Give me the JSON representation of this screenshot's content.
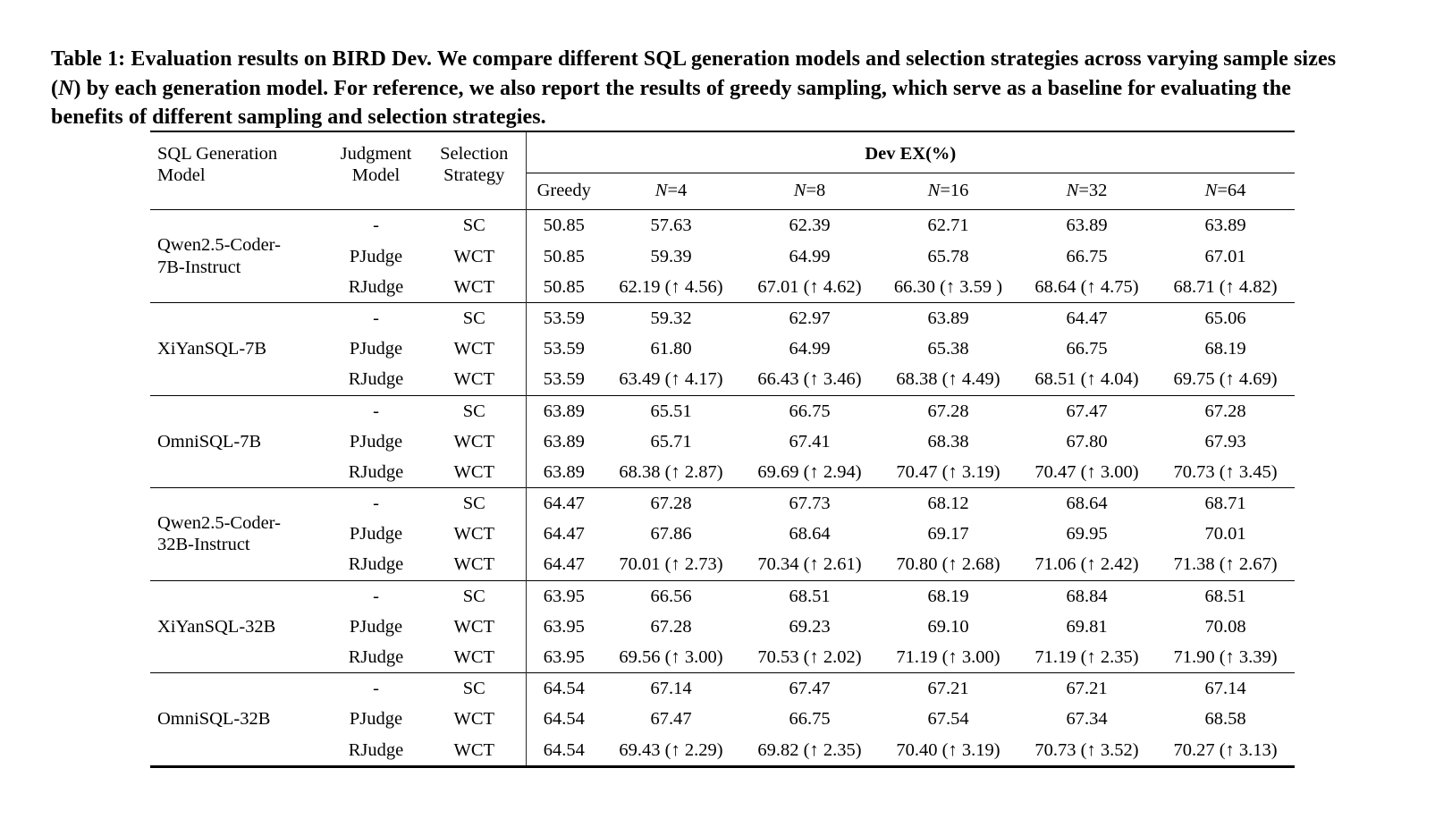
{
  "caption": {
    "part1": "Table 1: Evaluation results on BIRD Dev. We compare different SQL generation models and selection strategies across varying sample sizes (",
    "n_symbol": "N",
    "part2": ") by each generation model. For reference, we also report the results of greedy sampling, which serve as a baseline for evaluating the benefits of different sampling and selection strategies."
  },
  "table": {
    "headers": {
      "model": "SQL Generation Model",
      "judgment": "Judgment Model",
      "strategy": "Selection Strategy",
      "dev_ex": "Dev EX(%)"
    },
    "subheaders": {
      "greedy": "Greedy",
      "n_symbol": "N",
      "n_values": [
        "=4",
        "=8",
        "=16",
        "=32",
        "=64"
      ]
    },
    "groups": [
      {
        "model": "Qwen2.5-Coder-7B-Instruct",
        "model_lines": [
          "Qwen2.5-Coder-",
          "7B-Instruct"
        ],
        "rows": [
          {
            "cells": [
              "-",
              "SC",
              "50.85",
              "57.63",
              "62.39",
              "62.71",
              "63.89",
              "63.89"
            ]
          },
          {
            "cells": [
              "PJudge",
              "WCT",
              "50.85",
              "59.39",
              "64.99",
              "65.78",
              "66.75",
              "67.01"
            ]
          },
          {
            "cells": [
              "RJudge",
              "WCT",
              "50.85",
              "62.19 (↑ 4.56)",
              "67.01 (↑ 4.62)",
              "66.30 (↑ 3.59 )",
              "68.64 (↑ 4.75)",
              "68.71 (↑ 4.82)"
            ]
          }
        ]
      },
      {
        "model": "XiYanSQL-7B",
        "model_lines": [
          "XiYanSQL-7B"
        ],
        "rows": [
          {
            "cells": [
              "-",
              "SC",
              "53.59",
              "59.32",
              "62.97",
              "63.89",
              "64.47",
              "65.06"
            ]
          },
          {
            "cells": [
              "PJudge",
              "WCT",
              "53.59",
              "61.80",
              "64.99",
              "65.38",
              "66.75",
              "68.19"
            ]
          },
          {
            "cells": [
              "RJudge",
              "WCT",
              "53.59",
              "63.49 (↑ 4.17)",
              "66.43 (↑ 3.46)",
              "68.38 (↑ 4.49)",
              "68.51 (↑ 4.04)",
              "69.75 (↑ 4.69)"
            ]
          }
        ]
      },
      {
        "model": "OmniSQL-7B",
        "model_lines": [
          "OmniSQL-7B"
        ],
        "rows": [
          {
            "cells": [
              "-",
              "SC",
              "63.89",
              "65.51",
              "66.75",
              "67.28",
              "67.47",
              "67.28"
            ]
          },
          {
            "cells": [
              "PJudge",
              "WCT",
              "63.89",
              "65.71",
              "67.41",
              "68.38",
              "67.80",
              "67.93"
            ]
          },
          {
            "cells": [
              "RJudge",
              "WCT",
              "63.89",
              "68.38 (↑ 2.87)",
              "69.69 (↑ 2.94)",
              "70.47 (↑ 3.19)",
              "70.47 (↑ 3.00)",
              "70.73 (↑ 3.45)"
            ]
          }
        ]
      },
      {
        "model": "Qwen2.5-Coder-32B-Instruct",
        "model_lines": [
          "Qwen2.5-Coder-",
          "32B-Instruct"
        ],
        "rows": [
          {
            "cells": [
              "-",
              "SC",
              "64.47",
              "67.28",
              "67.73",
              "68.12",
              "68.64",
              "68.71"
            ]
          },
          {
            "cells": [
              "PJudge",
              "WCT",
              "64.47",
              "67.86",
              "68.64",
              "69.17",
              "69.95",
              "70.01"
            ]
          },
          {
            "cells": [
              "RJudge",
              "WCT",
              "64.47",
              "70.01 (↑ 2.73)",
              "70.34 (↑ 2.61)",
              "70.80 (↑ 2.68)",
              "71.06 (↑ 2.42)",
              "71.38 (↑ 2.67)"
            ]
          }
        ]
      },
      {
        "model": "XiYanSQL-32B",
        "model_lines": [
          "XiYanSQL-32B"
        ],
        "rows": [
          {
            "cells": [
              "-",
              "SC",
              "63.95",
              "66.56",
              "68.51",
              "68.19",
              "68.84",
              "68.51"
            ]
          },
          {
            "cells": [
              "PJudge",
              "WCT",
              "63.95",
              "67.28",
              "69.23",
              "69.10",
              "69.81",
              "70.08"
            ]
          },
          {
            "cells": [
              "RJudge",
              "WCT",
              "63.95",
              "69.56 (↑ 3.00)",
              "70.53 (↑ 2.02)",
              "71.19 (↑ 3.00)",
              "71.19 (↑ 2.35)",
              "71.90 (↑ 3.39)"
            ]
          }
        ]
      },
      {
        "model": "OmniSQL-32B",
        "model_lines": [
          "OmniSQL-32B"
        ],
        "rows": [
          {
            "cells": [
              "-",
              "SC",
              "64.54",
              "67.14",
              "67.47",
              "67.21",
              "67.21",
              "67.14"
            ]
          },
          {
            "cells": [
              "PJudge",
              "WCT",
              "64.54",
              "67.47",
              "66.75",
              "67.54",
              "67.34",
              "68.58"
            ]
          },
          {
            "cells": [
              "RJudge",
              "WCT",
              "64.54",
              "69.43 (↑ 2.29)",
              "69.82 (↑ 2.35)",
              "70.40 (↑ 3.19)",
              "70.73 (↑ 3.52)",
              "70.27 (↑ 3.13)"
            ]
          }
        ]
      }
    ]
  }
}
